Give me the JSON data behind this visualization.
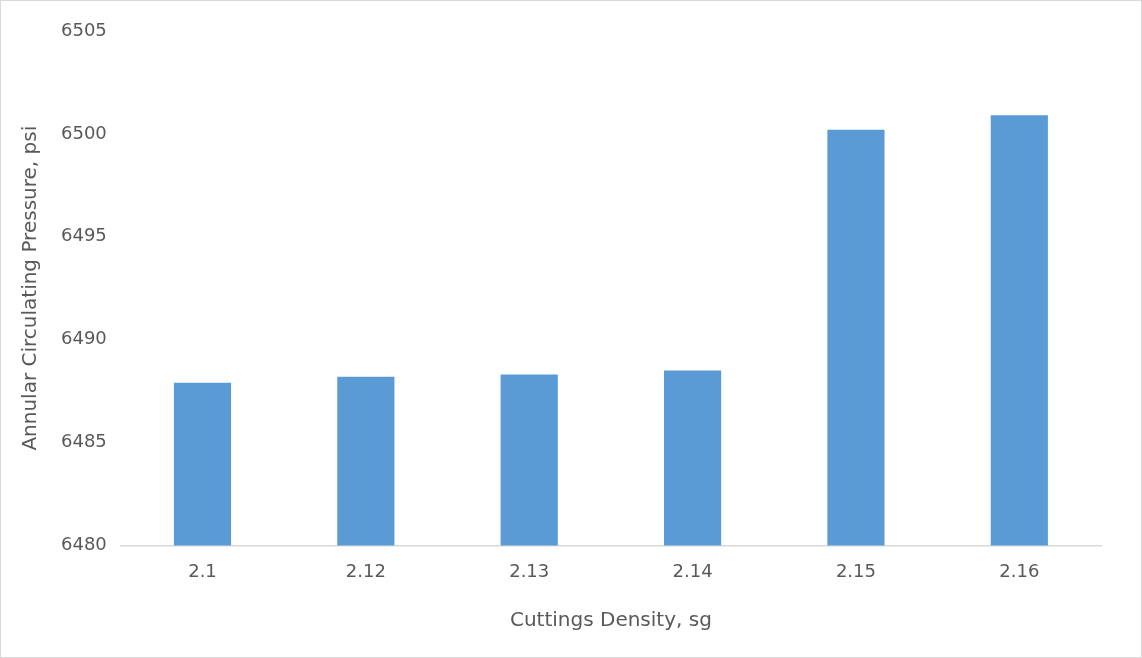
{
  "chart_data": {
    "type": "bar",
    "xlabel": "Cuttings Density, sg",
    "ylabel": "Annular Circulating Pressure, psi",
    "categories": [
      "2.1",
      "2.12",
      "2.13",
      "2.14",
      "2.15",
      "2.16"
    ],
    "values": [
      6487.9,
      6488.2,
      6488.3,
      6488.5,
      6500.2,
      6500.9
    ],
    "color": "#5b9bd5",
    "ylim": [
      6480,
      6505
    ],
    "yticks": [
      6480,
      6485,
      6490,
      6495,
      6500,
      6505
    ],
    "grid": false,
    "legend": false
  }
}
